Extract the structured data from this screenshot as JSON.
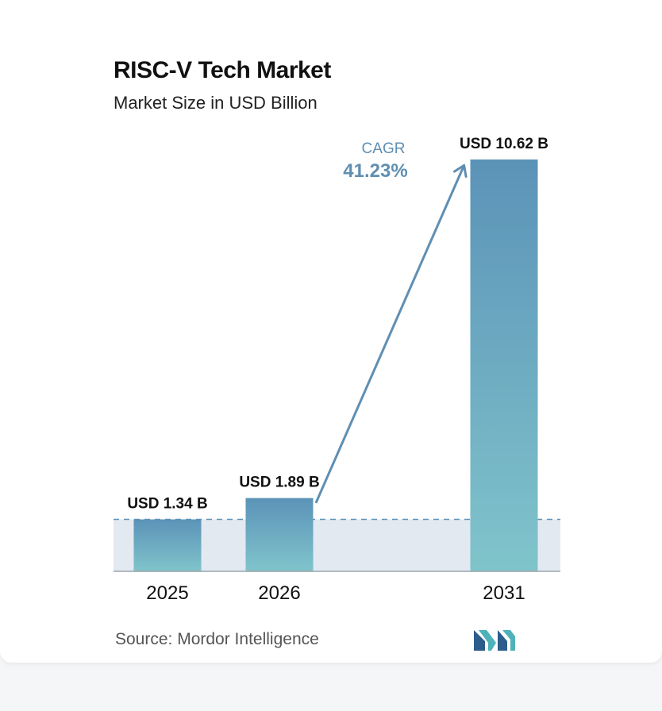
{
  "chart_data": {
    "type": "bar",
    "title": "RISC-V Tech Market",
    "subtitle": "Market Size in USD Billion",
    "categories": [
      "2025",
      "2026",
      "2031"
    ],
    "values": [
      1.34,
      1.89,
      10.62
    ],
    "value_labels": [
      "USD 1.34 B",
      "USD 1.89 B",
      "USD 10.62 B"
    ],
    "ylim": [
      0,
      10.62
    ],
    "grid": false,
    "annotation": {
      "label": "CAGR",
      "value": "41.23%"
    },
    "colors": {
      "bar_top": "#5b93b8",
      "bar_bottom": "#80c4cb",
      "band": "#e2e9f0",
      "annotation": "#5f8fb2",
      "dashed_line": "#5b93b8"
    }
  },
  "source": "Source:  Mordor Intelligence",
  "logo": {
    "icon": "mordor-intelligence-logo-icon",
    "colors": [
      "#2d5d8c",
      "#4fb2ba"
    ]
  }
}
